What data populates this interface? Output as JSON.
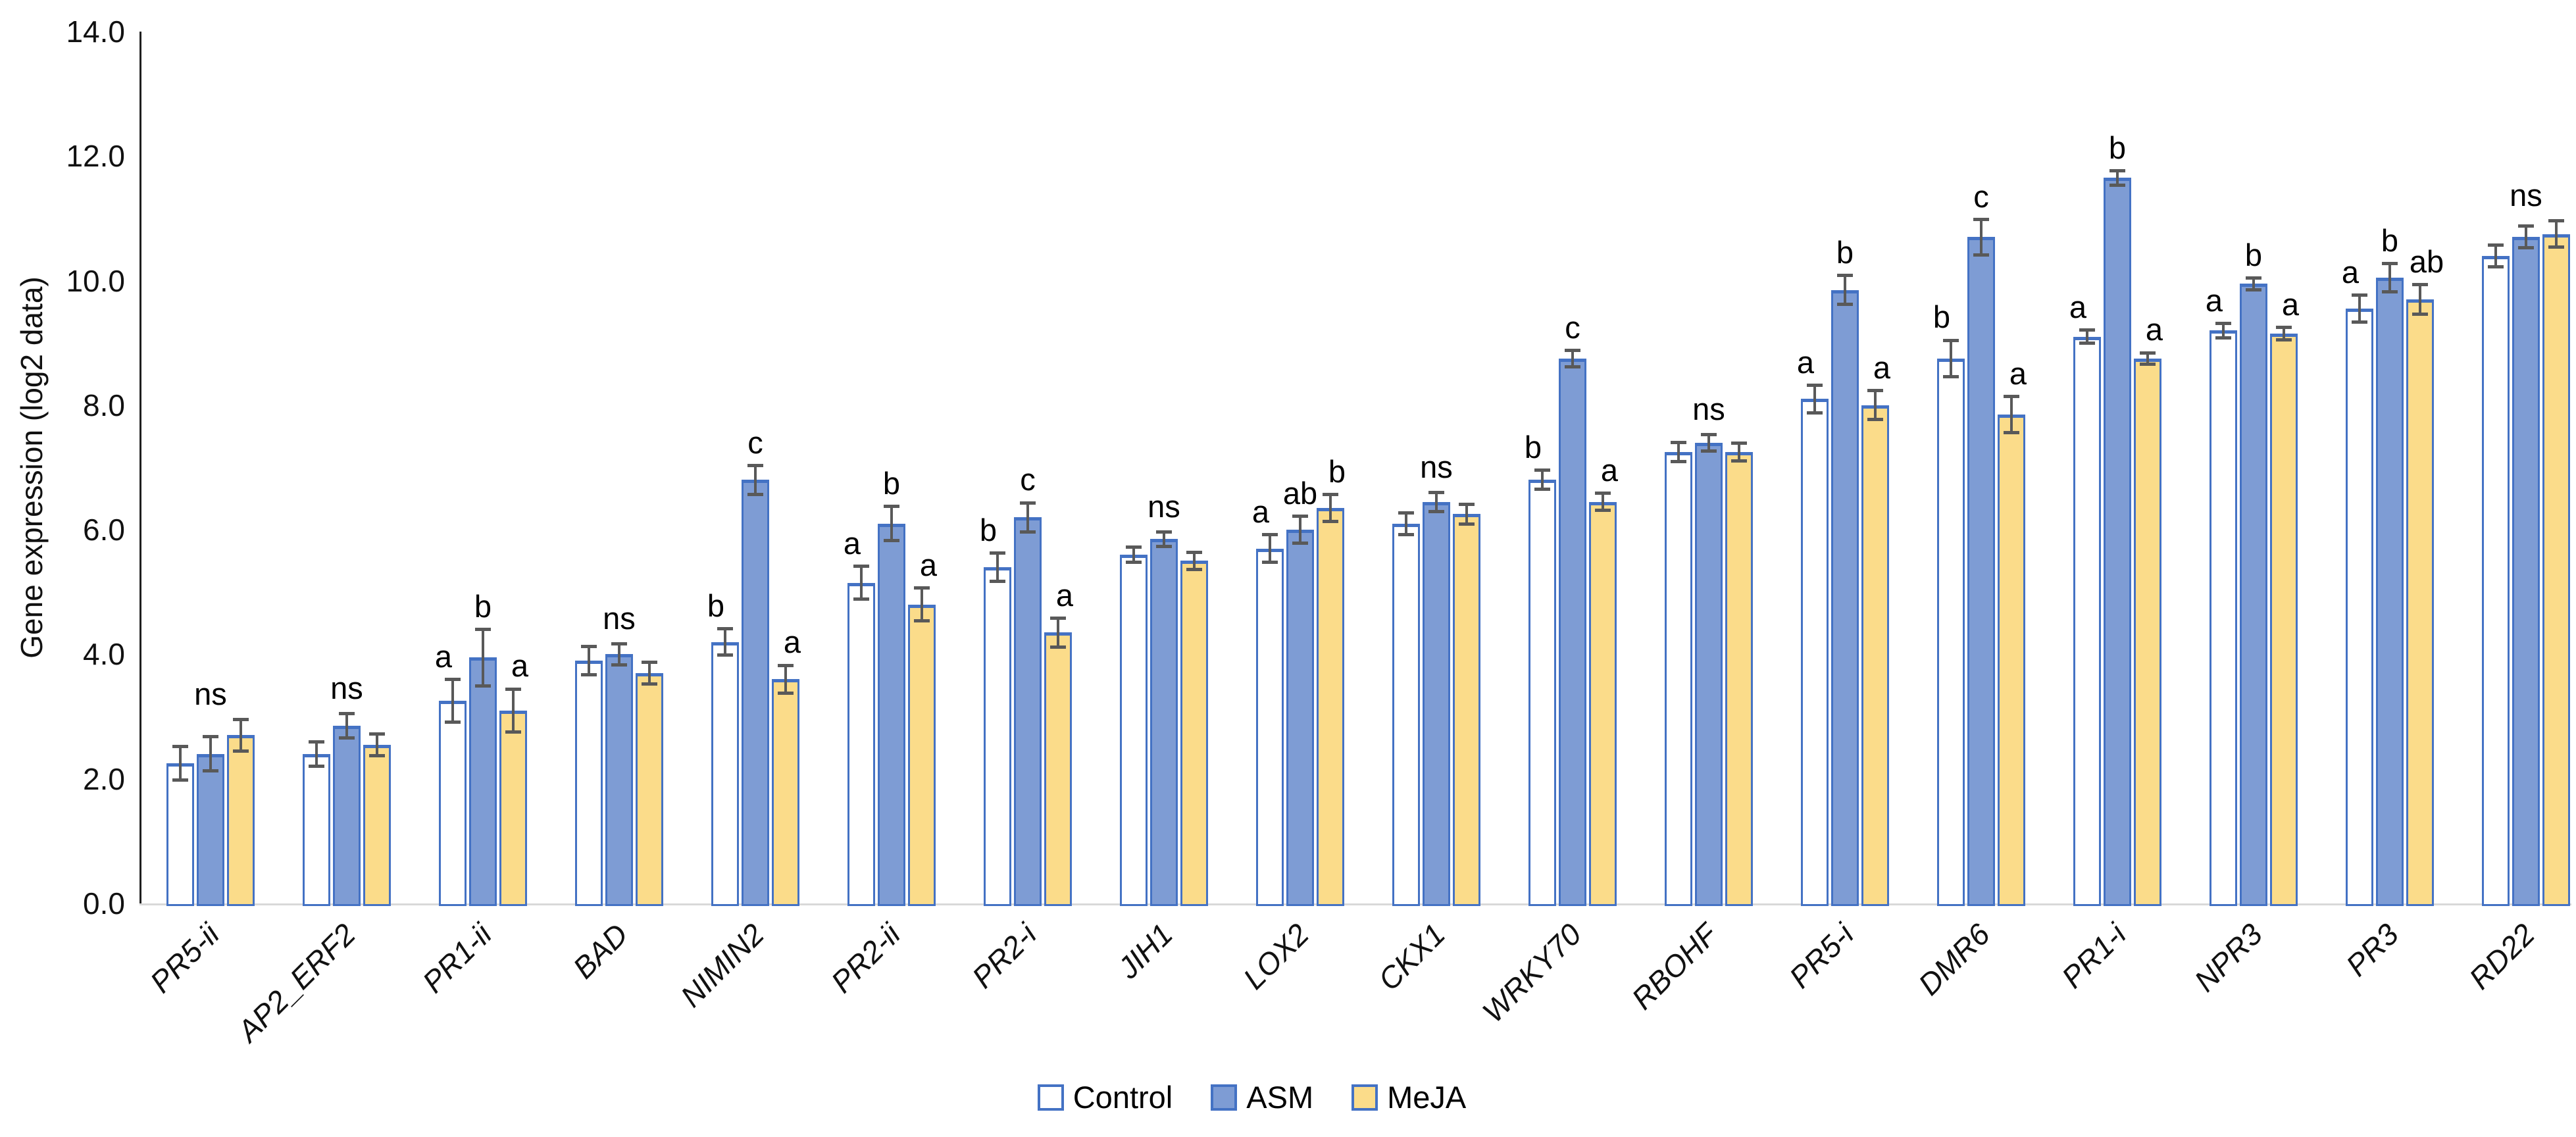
{
  "chart_data": {
    "type": "bar",
    "title": "",
    "ylabel": "Gene expression (log2 data)",
    "ylim": [
      0,
      14
    ],
    "ytick_step": 2,
    "yticks": [
      "0.0",
      "2.0",
      "4.0",
      "6.0",
      "8.0",
      "10.0",
      "12.0",
      "14.0"
    ],
    "grid": false,
    "legend_position": "bottom",
    "error_bar_color": "#595959",
    "bar_border_color": "#4472C4",
    "categories": [
      "PR5-ii",
      "AP2_ERF2",
      "PR1-ii",
      "BAD",
      "NIMIN2",
      "PR2-ii",
      "PR2-i",
      "JIH1",
      "LOX2",
      "CKX1",
      "WRKY70",
      "RBOHF",
      "PR5-i",
      "DMR6",
      "PR1-i",
      "NPR3",
      "PR3",
      "RD22"
    ],
    "series": [
      {
        "name": "Control",
        "fill": "#FFFFFF",
        "border": "#4472C4",
        "values": [
          2.25,
          2.4,
          3.25,
          3.9,
          4.2,
          5.15,
          5.4,
          5.6,
          5.7,
          6.1,
          6.8,
          7.25,
          8.1,
          8.75,
          9.1,
          9.2,
          9.55,
          10.4
        ],
        "errors": [
          0.3,
          0.22,
          0.37,
          0.25,
          0.24,
          0.29,
          0.25,
          0.15,
          0.25,
          0.2,
          0.18,
          0.18,
          0.25,
          0.32,
          0.13,
          0.14,
          0.24,
          0.2
        ]
      },
      {
        "name": "ASM",
        "fill": "#7E9CD4",
        "border": "#4472C4",
        "values": [
          2.4,
          2.85,
          3.95,
          4.0,
          6.8,
          6.1,
          6.2,
          5.85,
          6.0,
          6.45,
          8.75,
          7.4,
          9.85,
          10.7,
          11.65,
          9.95,
          10.05,
          10.7
        ],
        "errors": [
          0.3,
          0.22,
          0.48,
          0.2,
          0.26,
          0.3,
          0.26,
          0.14,
          0.24,
          0.18,
          0.16,
          0.16,
          0.26,
          0.31,
          0.14,
          0.12,
          0.25,
          0.2
        ]
      },
      {
        "name": "MeJA",
        "fill": "#FBDC8A",
        "border": "#4472C4",
        "values": [
          2.7,
          2.55,
          3.1,
          3.7,
          3.6,
          4.8,
          4.35,
          5.5,
          6.35,
          6.25,
          6.45,
          7.25,
          8.0,
          7.85,
          8.75,
          9.15,
          9.7,
          10.75
        ],
        "errors": [
          0.28,
          0.2,
          0.37,
          0.2,
          0.25,
          0.29,
          0.26,
          0.16,
          0.24,
          0.18,
          0.16,
          0.17,
          0.26,
          0.32,
          0.12,
          0.13,
          0.26,
          0.24
        ]
      }
    ],
    "sig_labels": [
      "ns",
      "ns",
      [
        "a",
        "b",
        "a"
      ],
      "ns",
      [
        "b",
        "c",
        "a"
      ],
      [
        "a",
        "b",
        "a"
      ],
      [
        "b",
        "c",
        "a"
      ],
      "ns",
      [
        "a",
        "ab",
        "b"
      ],
      "ns",
      [
        "b",
        "c",
        "a"
      ],
      "ns",
      [
        "a",
        "b",
        "a"
      ],
      [
        "b",
        "c",
        "a"
      ],
      [
        "a",
        "b",
        "a"
      ],
      [
        "a",
        "b",
        "a"
      ],
      [
        "a",
        "b",
        "ab"
      ],
      "ns"
    ]
  }
}
